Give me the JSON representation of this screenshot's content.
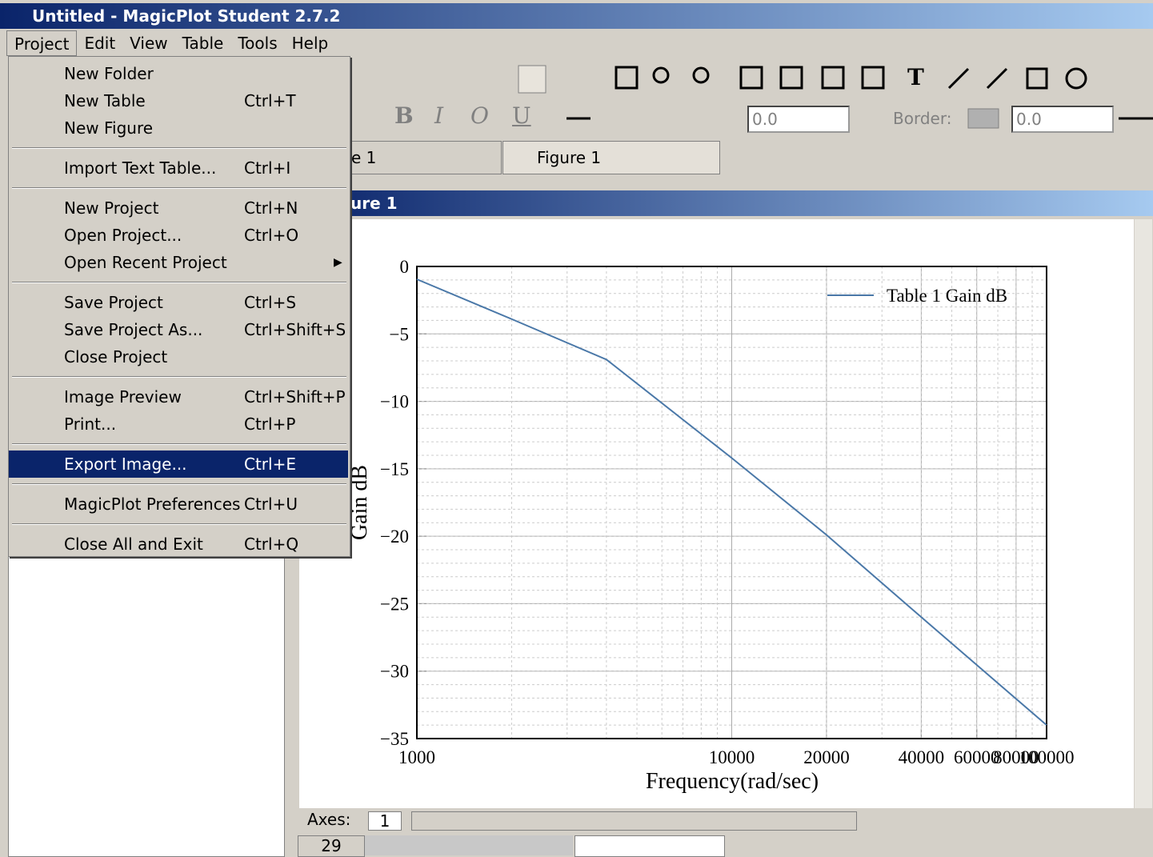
{
  "window": {
    "title": "Untitled - MagicPlot Student 2.7.2"
  },
  "menubar": [
    "Project",
    "Edit",
    "View",
    "Table",
    "Tools",
    "Help"
  ],
  "menu": {
    "groups": [
      [
        {
          "label": "New Folder"
        },
        {
          "label": "New Table",
          "shortcut": "Ctrl+T"
        },
        {
          "label": "New Figure"
        }
      ],
      [
        {
          "label": "Import Text Table...",
          "shortcut": "Ctrl+I"
        }
      ],
      [
        {
          "label": "New Project",
          "shortcut": "Ctrl+N"
        },
        {
          "label": "Open Project...",
          "shortcut": "Ctrl+O"
        },
        {
          "label": "Open Recent Project",
          "submenu": true
        }
      ],
      [
        {
          "label": "Save Project",
          "shortcut": "Ctrl+S"
        },
        {
          "label": "Save Project As...",
          "shortcut": "Ctrl+Shift+S"
        },
        {
          "label": "Close Project"
        }
      ],
      [
        {
          "label": "Image Preview",
          "shortcut": "Ctrl+Shift+P"
        },
        {
          "label": "Print...",
          "shortcut": "Ctrl+P"
        }
      ],
      [
        {
          "label": "Export Image...",
          "shortcut": "Ctrl+E",
          "highlighted": true
        }
      ],
      [
        {
          "label": "MagicPlot Preferences",
          "shortcut": "Ctrl+U"
        }
      ],
      [
        {
          "label": "Close All and Exit",
          "shortcut": "Ctrl+Q"
        }
      ]
    ]
  },
  "toolbar": {
    "text_tool": "T",
    "format_buttons": [
      "B",
      "I",
      "O",
      "U"
    ],
    "angle_value": "0.0",
    "border_label": "Border:",
    "border_value": "0.0"
  },
  "tabs": [
    "e 1",
    "Figure 1"
  ],
  "figure_window": {
    "title": "ure 1",
    "axes_label": "Axes:",
    "axes_value": "1"
  },
  "table_row": "29",
  "chart_data": {
    "type": "line",
    "x_label": "Frequency(rad/sec)",
    "y_label": "Gain dB",
    "x": [
      1000,
      2000,
      4000,
      10000,
      20000,
      40000,
      100000
    ],
    "series": [
      {
        "name": "Table 1 Gain dB",
        "color": "#4a78a8",
        "values": [
          -0.95,
          -3.9,
          -6.9,
          -14.2,
          -19.9,
          -26,
          -34
        ]
      }
    ],
    "x_scale": "log",
    "xlim": [
      1000,
      100000
    ],
    "xticks": [
      1000,
      10000,
      20000,
      40000,
      60000,
      80000,
      100000
    ],
    "ylim": [
      -35,
      0
    ],
    "yticks": [
      0,
      {
        "value": -5,
        "label": "−5"
      },
      {
        "value": -10,
        "label": "−10"
      },
      {
        "value": -15,
        "label": "−15"
      },
      {
        "value": -20,
        "label": "−20"
      },
      {
        "value": -25,
        "label": "−25"
      },
      {
        "value": -30,
        "label": "−30"
      },
      {
        "value": -35,
        "label": "−35"
      }
    ],
    "grid": true,
    "legend": "upper right"
  }
}
